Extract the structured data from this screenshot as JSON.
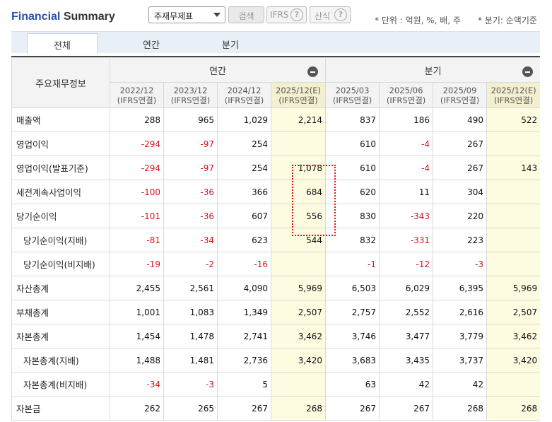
{
  "header": {
    "title_part1": "Financial",
    "title_part2": "Summary",
    "select_value": "주재무제표",
    "search_label": "검색",
    "ifrs_label": "IFRS",
    "calc_label": "산식",
    "help_glyph": "?",
    "unit_note": "* 단위 : 억원, %, 배, 주",
    "period_note": "* 분기: 순액기준"
  },
  "tabs": [
    {
      "label": "전체"
    },
    {
      "label": "연간"
    },
    {
      "label": "분기"
    }
  ],
  "table": {
    "row_label_header": "주요재무정보",
    "group_annual": "연간",
    "group_quarter": "분기",
    "columns": [
      {
        "period": "2022/12",
        "basis": "(IFRS연결)"
      },
      {
        "period": "2023/12",
        "basis": "(IFRS연결)"
      },
      {
        "period": "2024/12",
        "basis": "(IFRS연결)"
      },
      {
        "period": "2025/12(E)",
        "basis": "(IFRS연결)"
      },
      {
        "period": "2025/03",
        "basis": "(IFRS연결)"
      },
      {
        "period": "2025/06",
        "basis": "(IFRS연결)"
      },
      {
        "period": "2025/09",
        "basis": "(IFRS연결)"
      },
      {
        "period": "2025/12(E)",
        "basis": "(IFRS연결)"
      }
    ],
    "rows": [
      {
        "label": "매출액",
        "values": [
          "288",
          "965",
          "1,029",
          "2,214",
          "837",
          "186",
          "490",
          "522"
        ]
      },
      {
        "label": "영업이익",
        "values": [
          "-294",
          "-97",
          "254",
          "",
          "610",
          "-4",
          "267",
          ""
        ]
      },
      {
        "label": "영업이익(발표기준)",
        "values": [
          "-294",
          "-97",
          "254",
          "1,078",
          "610",
          "-4",
          "267",
          "143"
        ]
      },
      {
        "label": "세전계속사업이익",
        "values": [
          "-100",
          "-36",
          "366",
          "684",
          "620",
          "11",
          "304",
          ""
        ]
      },
      {
        "label": "당기순이익",
        "values": [
          "-101",
          "-36",
          "607",
          "556",
          "830",
          "-343",
          "220",
          ""
        ]
      },
      {
        "label": "당기순이익(지배)",
        "values": [
          "-81",
          "-34",
          "623",
          "544",
          "832",
          "-331",
          "223",
          ""
        ]
      },
      {
        "label": "당기순이익(비지배)",
        "values": [
          "-19",
          "-2",
          "-16",
          "",
          "-1",
          "-12",
          "-3",
          ""
        ]
      },
      {
        "label": "자산총계",
        "values": [
          "2,455",
          "2,561",
          "4,090",
          "5,969",
          "6,503",
          "6,029",
          "6,395",
          "5,969"
        ]
      },
      {
        "label": "부채총계",
        "values": [
          "1,001",
          "1,083",
          "1,349",
          "2,507",
          "2,757",
          "2,552",
          "2,616",
          "2,507"
        ]
      },
      {
        "label": "자본총계",
        "values": [
          "1,454",
          "1,478",
          "2,741",
          "3,462",
          "3,746",
          "3,477",
          "3,779",
          "3,462"
        ]
      },
      {
        "label": "자본총계(지배)",
        "values": [
          "1,488",
          "1,481",
          "2,736",
          "3,420",
          "3,683",
          "3,435",
          "3,737",
          "3,420"
        ]
      },
      {
        "label": "자본총계(비지배)",
        "values": [
          "-34",
          "-3",
          "5",
          "",
          "63",
          "42",
          "42",
          ""
        ]
      },
      {
        "label": "자본금",
        "values": [
          "262",
          "265",
          "267",
          "268",
          "267",
          "267",
          "268",
          "268"
        ]
      }
    ]
  }
}
